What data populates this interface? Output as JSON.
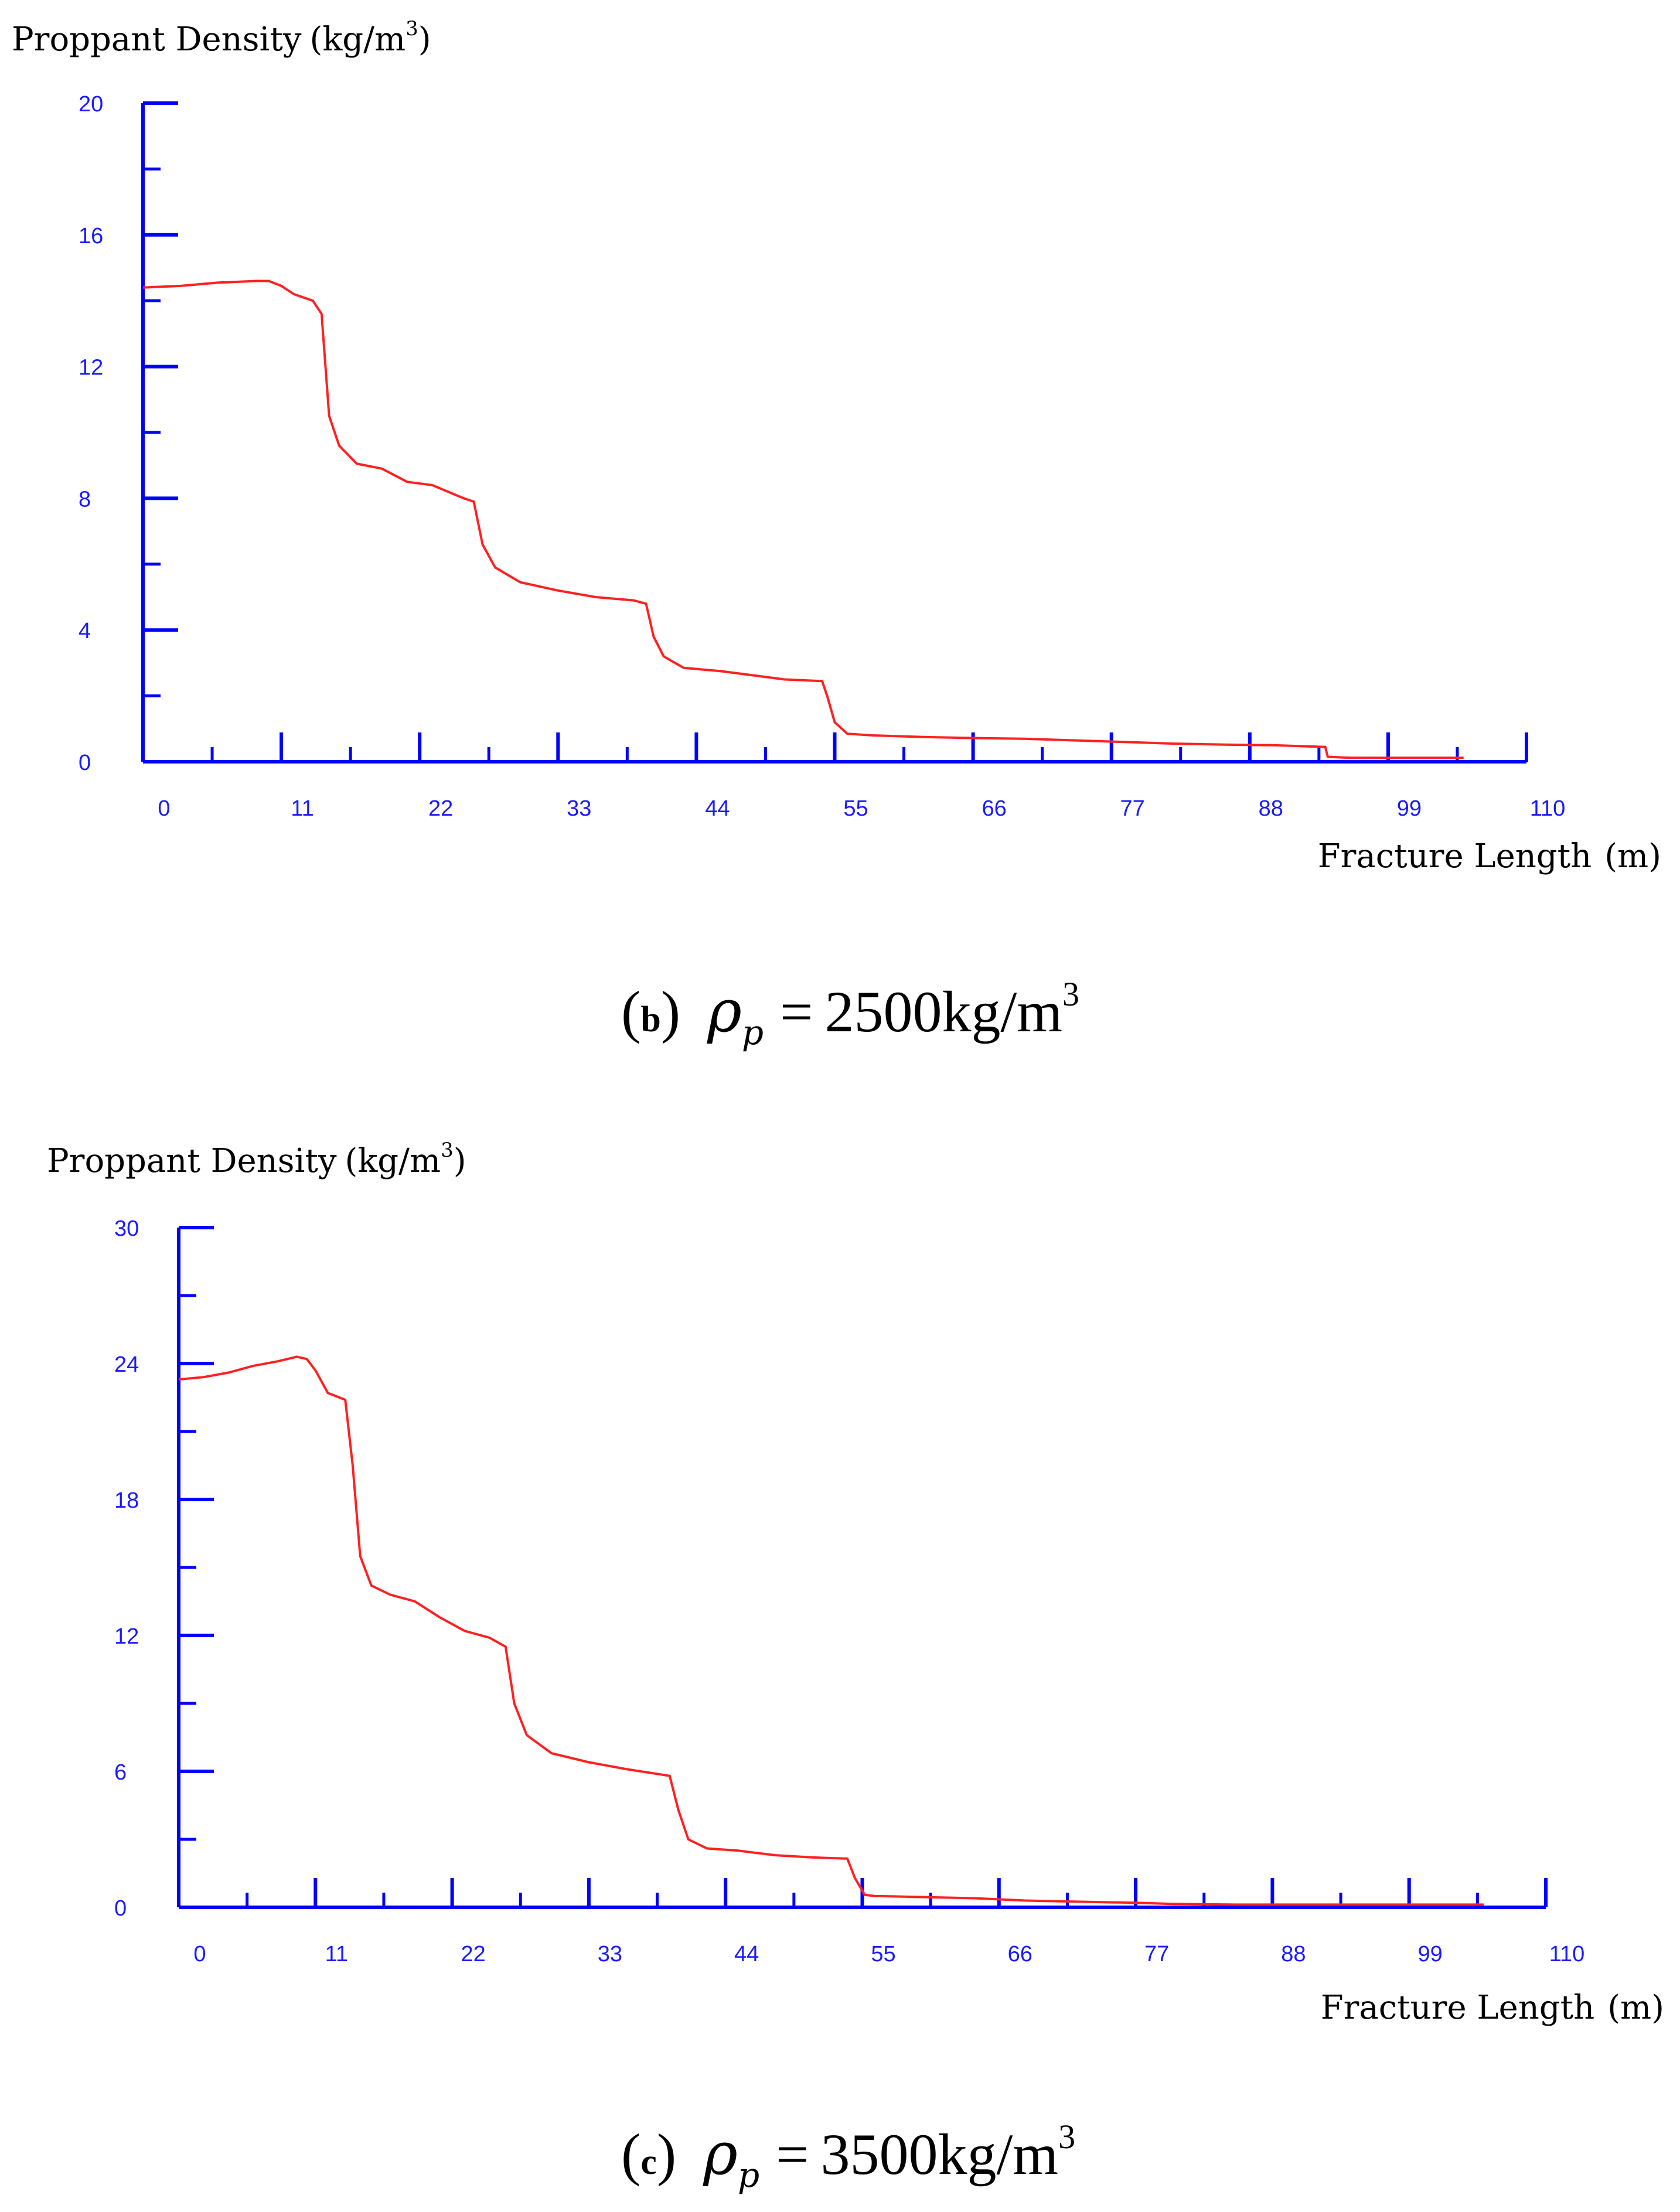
{
  "colors": {
    "axis": "#0000ff",
    "tick_label": "#1a1aff",
    "series": "#ff2020",
    "text": "#000000"
  },
  "chart_data": [
    {
      "type": "line",
      "ylabel": "Proppant Density",
      "ylabel_unit": "(kg/m",
      "ylabel_sup": "3",
      "ylabel_close": ")",
      "xlabel": "Fracture Length",
      "xlabel_unit": "(m)",
      "xlim": [
        0,
        110
      ],
      "ylim": [
        0,
        20
      ],
      "xticks": [
        0,
        11,
        22,
        33,
        44,
        55,
        66,
        77,
        88,
        99,
        110
      ],
      "xtick_labels": [
        "0",
        "11",
        "22",
        "33",
        "44",
        "55",
        "66",
        "77",
        "88",
        "99",
        "110"
      ],
      "yticks": [
        0,
        4,
        8,
        12,
        16,
        20
      ],
      "ytick_labels": [
        "0",
        "4",
        "8",
        "12",
        "16",
        "20"
      ],
      "minor_x_step": 5.5,
      "minor_y_step": 2,
      "grid": false,
      "caption": {
        "letter": "b",
        "symbol": "ρ",
        "subscript": "p",
        "equals": "=",
        "value": "2500kg/m",
        "sup": "3"
      },
      "series": [
        {
          "name": "proppant density",
          "x": [
            0,
            3,
            6,
            9,
            10,
            11,
            12,
            13.5,
            14.2,
            14.8,
            15.6,
            17,
            19,
            21,
            23,
            25.5,
            26.3,
            27,
            28,
            30,
            33,
            36,
            39,
            40,
            40.6,
            41.4,
            43,
            46,
            49,
            51,
            54,
            54.4,
            55,
            56,
            58,
            62,
            66,
            70,
            74,
            78,
            82,
            86,
            90,
            94,
            94.2,
            96,
            100,
            105
          ],
          "y": [
            14.4,
            14.45,
            14.55,
            14.6,
            14.6,
            14.45,
            14.2,
            14.0,
            13.6,
            10.5,
            9.6,
            9.05,
            8.9,
            8.5,
            8.4,
            8.0,
            7.9,
            6.6,
            5.9,
            5.45,
            5.2,
            5.0,
            4.9,
            4.8,
            3.8,
            3.2,
            2.85,
            2.75,
            2.6,
            2.5,
            2.45,
            2.0,
            1.2,
            0.85,
            0.8,
            0.75,
            0.72,
            0.7,
            0.65,
            0.6,
            0.55,
            0.52,
            0.5,
            0.45,
            0.15,
            0.12,
            0.12,
            0.12
          ]
        }
      ]
    },
    {
      "type": "line",
      "ylabel": "Proppant Density",
      "ylabel_unit": "(kg/m",
      "ylabel_sup": "3",
      "ylabel_close": ")",
      "xlabel": "Fracture Length",
      "xlabel_unit": "(m)",
      "xlim": [
        0,
        110
      ],
      "ylim": [
        0,
        30
      ],
      "xticks": [
        0,
        11,
        22,
        33,
        44,
        55,
        66,
        77,
        88,
        99,
        110
      ],
      "xtick_labels": [
        "0",
        "11",
        "22",
        "33",
        "44",
        "55",
        "66",
        "77",
        "88",
        "99",
        "110"
      ],
      "yticks": [
        0,
        6,
        12,
        18,
        24,
        30
      ],
      "ytick_labels": [
        "0",
        "6",
        "12",
        "18",
        "24",
        "30"
      ],
      "minor_x_step": 5.5,
      "minor_y_step": 3,
      "grid": false,
      "caption": {
        "letter": "c",
        "symbol": "ρ",
        "subscript": "p",
        "equals": "=",
        "value": "3500kg/m",
        "sup": "3"
      },
      "series": [
        {
          "name": "proppant density",
          "x": [
            0,
            2,
            4,
            6,
            8,
            9.5,
            10.3,
            11,
            12,
            13.4,
            14,
            14.6,
            15.5,
            17,
            19,
            21,
            23,
            25,
            26.3,
            27,
            28,
            30,
            33,
            36,
            39.5,
            40.2,
            41,
            42.5,
            45,
            48,
            51,
            53.8,
            54.4,
            55.2,
            56,
            60,
            64,
            68,
            72,
            77,
            80,
            85,
            90,
            95,
            100,
            105
          ],
          "y": [
            23.3,
            23.4,
            23.6,
            23.9,
            24.1,
            24.3,
            24.2,
            23.7,
            22.7,
            22.4,
            19.5,
            15.5,
            14.2,
            13.8,
            13.5,
            12.8,
            12.2,
            11.9,
            11.5,
            9.0,
            7.6,
            6.8,
            6.4,
            6.1,
            5.8,
            4.3,
            3.0,
            2.6,
            2.5,
            2.3,
            2.2,
            2.15,
            1.3,
            0.55,
            0.5,
            0.45,
            0.4,
            0.3,
            0.25,
            0.2,
            0.15,
            0.12,
            0.12,
            0.12,
            0.12,
            0.12
          ]
        }
      ]
    }
  ]
}
